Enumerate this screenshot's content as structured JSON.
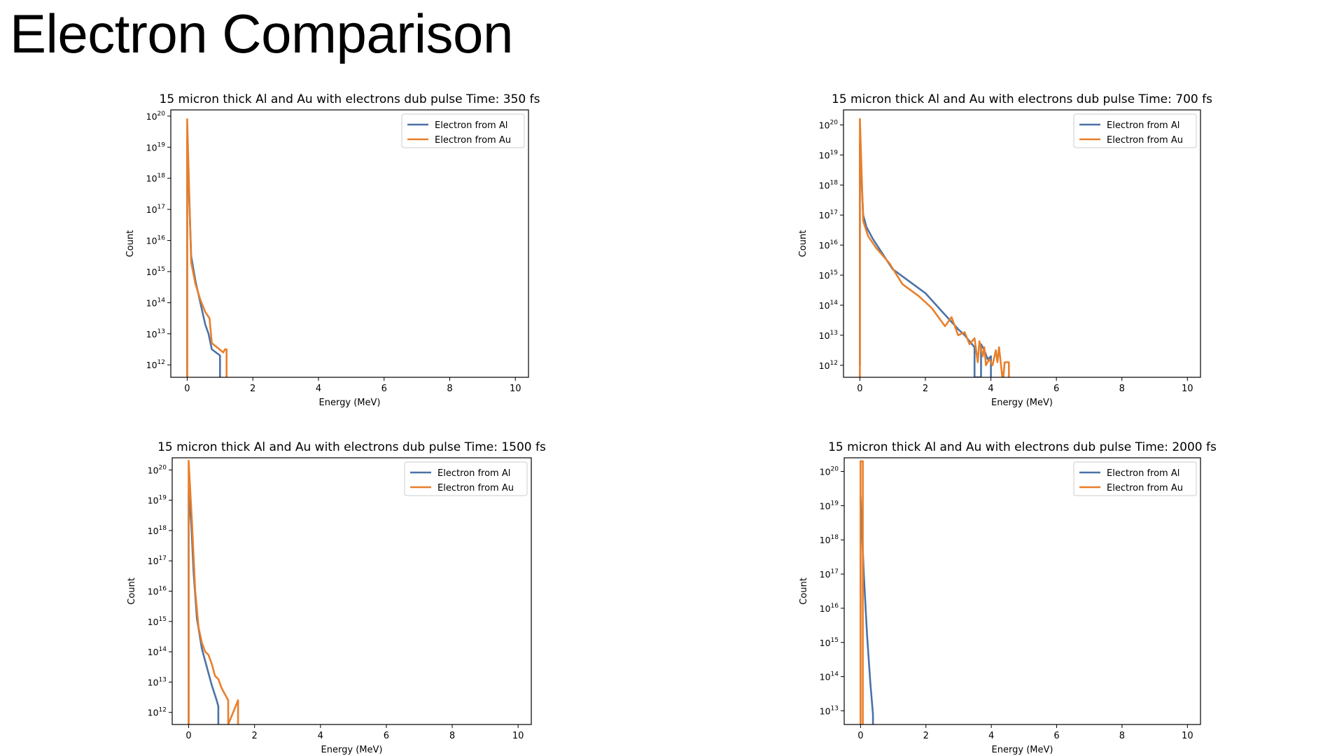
{
  "slide": {
    "title": "Electron Comparison"
  },
  "colors": {
    "al": "#4a73a6",
    "au": "#e97f2a",
    "axes": "#000000"
  },
  "chart_data": [
    {
      "type": "line",
      "title": "15 micron thick Al and Au with electrons dub pulse Time: 350 fs",
      "xlabel": "Energy (MeV)",
      "ylabel": "Count",
      "xlim": [
        -0.5,
        10.4
      ],
      "xticks": [
        "0",
        "2",
        "4",
        "6",
        "8",
        "10"
      ],
      "yscale": "log",
      "ylim_exp": [
        11.6,
        20.2
      ],
      "yticks_exp": [
        12,
        13,
        14,
        15,
        16,
        17,
        18,
        19,
        20
      ],
      "legend_position": "top-right",
      "series": [
        {
          "name": "Electron from Al",
          "x": [
            0,
            0,
            0.12,
            0.25,
            0.4,
            0.55,
            0.65,
            0.75,
            1.0,
            1.0
          ],
          "y_exp": [
            11.6,
            19.3,
            15.5,
            14.7,
            14.0,
            13.3,
            13.0,
            12.5,
            12.3,
            11.6
          ]
        },
        {
          "name": "Electron from Au",
          "x": [
            0,
            0,
            0.12,
            0.25,
            0.4,
            0.55,
            0.68,
            0.75,
            1.1,
            1.15,
            1.2,
            1.2
          ],
          "y_exp": [
            11.6,
            19.9,
            15.3,
            14.6,
            14.1,
            13.7,
            13.5,
            12.7,
            12.4,
            12.5,
            12.5,
            11.6
          ]
        }
      ]
    },
    {
      "type": "line",
      "title": "15 micron thick Al and Au with electrons dub pulse Time: 700 fs",
      "xlabel": "Energy (MeV)",
      "ylabel": "Count",
      "xlim": [
        -0.5,
        10.4
      ],
      "xticks": [
        "0",
        "2",
        "4",
        "6",
        "8",
        "10"
      ],
      "yscale": "log",
      "ylim_exp": [
        11.6,
        20.5
      ],
      "yticks_exp": [
        12,
        13,
        14,
        15,
        16,
        17,
        18,
        19,
        20
      ],
      "legend_position": "top-right",
      "series": [
        {
          "name": "Electron from Al",
          "x": [
            0,
            0,
            0.1,
            0.2,
            0.4,
            0.7,
            1.0,
            1.5,
            2.0,
            2.5,
            3.0,
            3.2,
            3.5,
            3.5,
            3.7,
            3.7,
            3.8,
            3.9,
            4.0,
            4.0
          ],
          "y_exp": [
            12,
            19.4,
            17.0,
            16.6,
            16.2,
            15.7,
            15.2,
            14.8,
            14.4,
            13.8,
            13.2,
            13.0,
            12.6,
            11.6,
            11.6,
            12.7,
            12.5,
            12.2,
            12.3,
            11.6
          ]
        },
        {
          "name": "Electron from Au",
          "x": [
            0,
            0,
            0.1,
            0.25,
            0.5,
            0.9,
            1.3,
            1.8,
            2.2,
            2.6,
            2.8,
            3.0,
            3.2,
            3.35,
            3.5,
            3.6,
            3.65,
            3.75,
            3.8,
            3.85,
            3.95,
            4.05,
            4.15,
            4.2,
            4.25,
            4.35,
            4.38,
            4.42,
            4.5,
            4.55,
            4.55
          ],
          "y_exp": [
            11.6,
            20.2,
            16.8,
            16.3,
            15.9,
            15.4,
            14.7,
            14.3,
            13.9,
            13.3,
            13.6,
            13.0,
            13.1,
            12.7,
            12.9,
            12.1,
            12.8,
            12.3,
            12.6,
            12.0,
            12.2,
            12.0,
            12.5,
            12.1,
            12.6,
            11.6,
            11.6,
            12.1,
            12.1,
            12.1,
            11.6
          ]
        }
      ]
    },
    {
      "type": "line",
      "title": "15 micron thick Al and Au with electrons dub pulse Time: 1500 fs",
      "xlabel": "Energy (MeV)",
      "ylabel": "Count",
      "xlim": [
        -0.5,
        10.4
      ],
      "xticks": [
        "0",
        "2",
        "4",
        "6",
        "8",
        "10"
      ],
      "yscale": "log",
      "ylim_exp": [
        11.6,
        20.4
      ],
      "yticks_exp": [
        12,
        13,
        14,
        15,
        16,
        17,
        18,
        19,
        20
      ],
      "legend_position": "top-right",
      "series": [
        {
          "name": "Electron from Al",
          "x": [
            0,
            0,
            0.08,
            0.15,
            0.25,
            0.4,
            0.55,
            0.7,
            0.85,
            0.9,
            0.9
          ],
          "y_exp": [
            11.6,
            19.3,
            18.2,
            16.6,
            15.1,
            14.1,
            13.5,
            12.9,
            12.4,
            12.2,
            11.6
          ]
        },
        {
          "name": "Electron from Au",
          "x": [
            0,
            0,
            0.1,
            0.2,
            0.3,
            0.4,
            0.5,
            0.6,
            0.7,
            0.8,
            0.9,
            1.0,
            1.1,
            1.2,
            1.2,
            1.2,
            1.5,
            1.5
          ],
          "y_exp": [
            11.6,
            20.3,
            18.3,
            16.0,
            14.8,
            14.3,
            14.0,
            13.9,
            13.6,
            13.2,
            13.1,
            12.8,
            12.6,
            12.4,
            11.6,
            11.6,
            12.4,
            11.6
          ]
        }
      ]
    },
    {
      "type": "line",
      "title": "15 micron thick Al and Au with electrons dub pulse Time: 2000 fs",
      "xlabel": "Energy (MeV)",
      "ylabel": "Count",
      "xlim": [
        -0.5,
        10.4
      ],
      "xticks": [
        "0",
        "2",
        "4",
        "6",
        "8",
        "10"
      ],
      "yscale": "log",
      "ylim_exp": [
        12.6,
        20.4
      ],
      "yticks_exp": [
        13,
        14,
        15,
        16,
        17,
        18,
        19,
        20
      ],
      "legend_position": "top-right",
      "series": [
        {
          "name": "Electron from Al",
          "x": [
            0,
            0,
            0.1,
            0.2,
            0.3,
            0.38,
            0.38
          ],
          "y_exp": [
            12.6,
            19.3,
            17.0,
            15.2,
            13.8,
            12.9,
            12.6
          ]
        },
        {
          "name": "Electron from Au",
          "x": [
            0,
            0,
            0.07,
            0.07
          ],
          "y_exp": [
            12.6,
            20.3,
            20.3,
            12.6
          ]
        }
      ]
    }
  ]
}
